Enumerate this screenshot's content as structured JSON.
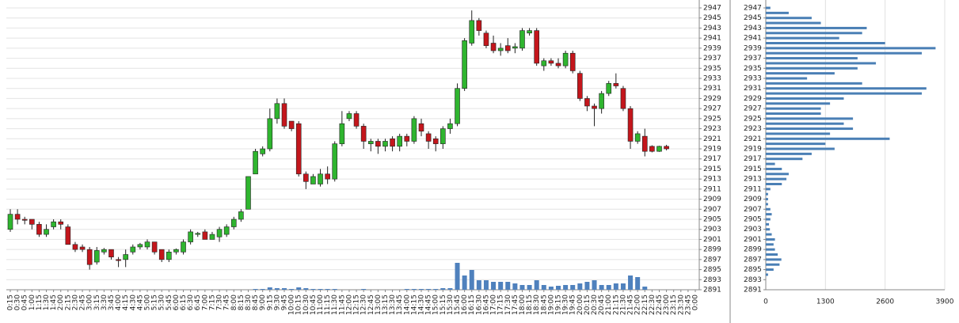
{
  "chart_data": [
    {
      "type": "candlestick",
      "categories": [
        "0:15",
        "0:30",
        "0:45",
        "1:00",
        "1:15",
        "1:30",
        "1:45",
        "2:00",
        "2:15",
        "2:30",
        "2:45",
        "3:00",
        "3:15",
        "3:30",
        "3:45",
        "4:00",
        "4:15",
        "4:30",
        "4:45",
        "5:00",
        "5:15",
        "5:30",
        "5:45",
        "6:00",
        "6:15",
        "6:30",
        "6:45",
        "7:00",
        "7:15",
        "7:30",
        "7:45",
        "8:00",
        "8:15",
        "8:30",
        "8:45",
        "9:00",
        "9:15",
        "9:30",
        "9:45",
        "10:00",
        "10:15",
        "10:30",
        "10:45",
        "11:00",
        "11:15",
        "11:30",
        "11:45",
        "12:00",
        "12:15",
        "12:30",
        "12:45",
        "13:00",
        "13:15",
        "13:30",
        "13:45",
        "14:00",
        "14:15",
        "14:30",
        "14:45",
        "15:00",
        "15:15",
        "15:30",
        "15:45",
        "16:00",
        "16:15",
        "16:30",
        "16:45",
        "17:00",
        "17:15",
        "17:30",
        "17:45",
        "18:00",
        "18:15",
        "18:30",
        "18:45",
        "19:00",
        "19:15",
        "19:30",
        "19:45",
        "20:00",
        "20:15",
        "20:30",
        "20:45",
        "21:00",
        "21:15",
        "21:30",
        "21:45",
        "22:00",
        "22:15",
        "22:30",
        "22:45",
        "23:00",
        "23:15",
        "23:30",
        "23:45",
        "0:00"
      ],
      "open": [
        2903,
        2906,
        2905,
        2905,
        2904,
        2902,
        2903.5,
        2904.5,
        2903.5,
        2900,
        2899.5,
        2899,
        2896.5,
        2898.5,
        2899,
        2897,
        2897,
        2898.5,
        2899.5,
        2899.5,
        2900.5,
        2899,
        2897,
        2898.5,
        2898.5,
        2900.5,
        2902,
        2902.5,
        2901,
        2901.5,
        2902,
        2903.5,
        2905,
        2907,
        2914,
        2918,
        2919,
        2925,
        2928,
        2924.5,
        2924,
        2914,
        2912,
        2912,
        2914,
        2913,
        2920,
        2925,
        2926,
        2923.5,
        2920,
        2920.5,
        2919.5,
        2921,
        2919.5,
        2921.5,
        2920.5,
        2924,
        2922,
        2921,
        2920,
        2923,
        2924,
        2931,
        2940,
        2944.5,
        2942,
        2940,
        2938.5,
        2939.5,
        2939,
        2939,
        2942,
        2942.5,
        2935.5,
        2936.5,
        2936,
        2935.5,
        2938,
        2934,
        2929,
        2927.5,
        2927,
        2930,
        2932,
        2931,
        2927,
        2920.5,
        2921.5,
        2919.5,
        2918.5,
        2919.5,
        null,
        null,
        null,
        null
      ],
      "high": [
        2907,
        2907,
        2905.5,
        2905,
        2904.5,
        2904,
        2905,
        2905,
        2904,
        2900.5,
        2900,
        2899.5,
        2899.5,
        2899.3,
        2899,
        2897.5,
        2899,
        2900,
        2900.3,
        2901,
        2900.5,
        2899,
        2899,
        2899.2,
        2901,
        2903,
        2902.5,
        2903,
        2902.5,
        2903.5,
        2904,
        2905.5,
        2907,
        2913.5,
        2919,
        2919.5,
        2927,
        2929,
        2929,
        2924.5,
        2924.5,
        2914.5,
        2914,
        2915,
        2915.5,
        2920.5,
        2926.5,
        2926.5,
        2926.5,
        2924,
        2921,
        2921,
        2921,
        2921.5,
        2922,
        2922,
        2925.5,
        2925,
        2922.5,
        2921.5,
        2923.5,
        2925,
        2932,
        2941,
        2946.5,
        2945,
        2942.5,
        2941.5,
        2940,
        2941,
        2940,
        2943,
        2943,
        2943,
        2937,
        2937,
        2937,
        2938.5,
        2938.5,
        2934.5,
        2929.5,
        2928,
        2930.5,
        2932.5,
        2934,
        2931.5,
        2927.5,
        2922.5,
        2923,
        2919.7,
        2919.6,
        2919.8,
        null,
        null,
        null,
        null
      ],
      "low": [
        2902.5,
        2904,
        2904,
        2903,
        2901.5,
        2901.5,
        2903,
        2903,
        2900,
        2898.5,
        2898.5,
        2895,
        2896,
        2898,
        2897,
        2895.5,
        2895.5,
        2898,
        2899,
        2899,
        2898,
        2896.5,
        2896.5,
        2898,
        2898,
        2900,
        2901.5,
        2901,
        2901,
        2900.5,
        2901.5,
        2903,
        2904.5,
        2907,
        2914,
        2917.5,
        2918.5,
        2924,
        2923,
        2922.5,
        2913.5,
        2911,
        2912,
        2911.5,
        2912,
        2912.5,
        2919.5,
        2924.5,
        2923,
        2919,
        2918.5,
        2918,
        2918.5,
        2918.5,
        2918.5,
        2919.5,
        2920,
        2921.5,
        2919,
        2918.5,
        2919,
        2922,
        2923.5,
        2930.5,
        2939.5,
        2941.5,
        2939,
        2938,
        2937.5,
        2938,
        2938,
        2938.5,
        2941.5,
        2935.5,
        2934.5,
        2935.5,
        2935,
        2935,
        2934,
        2928.5,
        2926.5,
        2923.5,
        2926,
        2929.5,
        2931,
        2926.5,
        2919,
        2920,
        2917.5,
        2918.3,
        2918.4,
        2918.7,
        null,
        null,
        null,
        null
      ],
      "close": [
        2906,
        2905,
        2904.8,
        2904,
        2902,
        2903,
        2904.5,
        2904,
        2900,
        2899,
        2899,
        2896,
        2898.8,
        2899,
        2897.5,
        2896.8,
        2898,
        2899.5,
        2900,
        2900.5,
        2898.5,
        2897,
        2898.5,
        2899,
        2900.5,
        2902.5,
        2902.2,
        2901,
        2902,
        2903,
        2903.5,
        2905,
        2906.5,
        2913.5,
        2918.5,
        2919,
        2925,
        2928,
        2923.5,
        2923,
        2914,
        2912.5,
        2913.5,
        2914,
        2913,
        2920,
        2924,
        2926,
        2923.5,
        2920.5,
        2920.5,
        2919.5,
        2920.5,
        2919.5,
        2921.5,
        2920.5,
        2925,
        2922.5,
        2920.5,
        2920,
        2923,
        2924,
        2931,
        2940.5,
        2944.5,
        2942.5,
        2939.5,
        2938.5,
        2939,
        2938.5,
        2939.3,
        2942.5,
        2942.5,
        2936,
        2936.5,
        2936,
        2935.5,
        2938,
        2934.5,
        2929,
        2927.5,
        2927,
        2930,
        2932,
        2931.5,
        2927,
        2920.5,
        2922,
        2918.5,
        2918.5,
        2919.5,
        2919,
        null,
        null,
        null,
        null
      ],
      "volume": [
        0,
        0,
        0,
        0,
        0,
        0,
        0,
        0,
        0,
        0,
        0,
        0,
        0,
        0,
        0,
        0,
        0,
        0,
        0,
        0,
        0,
        0,
        0,
        0,
        0,
        0,
        0,
        0,
        0,
        0,
        0,
        0,
        0,
        0,
        1,
        1,
        3,
        2,
        2,
        1,
        3,
        2,
        1,
        1,
        1,
        1,
        0,
        0,
        0,
        1,
        0,
        0,
        0,
        0,
        0,
        1,
        1,
        1,
        1,
        1,
        2,
        2,
        34,
        18,
        25,
        12,
        12,
        10,
        10,
        10,
        8,
        6,
        6,
        12,
        6,
        4,
        5,
        6,
        6,
        8,
        10,
        12,
        6,
        6,
        8,
        8,
        18,
        16,
        4,
        0,
        0,
        0,
        null,
        null,
        null,
        null
      ],
      "ylim": [
        2891,
        2947
      ],
      "yticks": [
        2891,
        2893,
        2895,
        2897,
        2899,
        2901,
        2903,
        2905,
        2907,
        2909,
        2911,
        2913,
        2915,
        2917,
        2919,
        2921,
        2923,
        2925,
        2927,
        2929,
        2931,
        2933,
        2935,
        2937,
        2939,
        2941,
        2943,
        2945,
        2947
      ],
      "grid": true,
      "up_color": "#2fb52f",
      "down_color": "#c4161c",
      "volume_color": "#4f81bd"
    },
    {
      "type": "barh",
      "y": [
        2947,
        2946,
        2945,
        2944,
        2943,
        2942,
        2941,
        2940,
        2939,
        2938,
        2937,
        2936,
        2935,
        2934,
        2933,
        2932,
        2931,
        2930,
        2929,
        2928,
        2927,
        2926,
        2925,
        2924,
        2923,
        2922,
        2921,
        2920,
        2919,
        2918,
        2917,
        2916,
        2915,
        2914,
        2913,
        2912,
        2911,
        2910,
        2909,
        2908,
        2907,
        2906,
        2905,
        2904,
        2903,
        2902,
        2901,
        2900,
        2899,
        2898,
        2897,
        2896,
        2895,
        2894
      ],
      "values": [
        100,
        500,
        1000,
        1200,
        2200,
        2100,
        1600,
        2600,
        3700,
        3400,
        2000,
        2400,
        2000,
        1500,
        900,
        2100,
        3500,
        3400,
        1700,
        1400,
        1200,
        1200,
        1900,
        1700,
        1900,
        1400,
        2700,
        1300,
        1500,
        1000,
        800,
        200,
        350,
        500,
        450,
        350,
        100,
        50,
        50,
        50,
        100,
        130,
        100,
        70,
        90,
        130,
        200,
        170,
        200,
        260,
        340,
        300,
        170,
        50
      ],
      "ylim": [
        2891,
        2947
      ],
      "yticks": [
        2891,
        2893,
        2895,
        2897,
        2899,
        2901,
        2903,
        2905,
        2907,
        2909,
        2911,
        2913,
        2915,
        2917,
        2919,
        2921,
        2923,
        2925,
        2927,
        2929,
        2931,
        2933,
        2935,
        2937,
        2939,
        2941,
        2943,
        2945,
        2947
      ],
      "xlim": [
        0,
        3900
      ],
      "xticks": [
        0,
        1300,
        2600,
        3900
      ],
      "grid": true,
      "color": "#4a7fb5"
    }
  ]
}
